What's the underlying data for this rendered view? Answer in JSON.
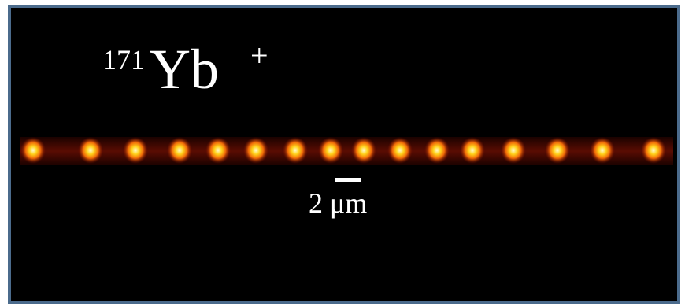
{
  "label": {
    "mass_number": "171",
    "element": "Yb",
    "charge": "+"
  },
  "scale_bar": {
    "text": "2 μm"
  }
}
